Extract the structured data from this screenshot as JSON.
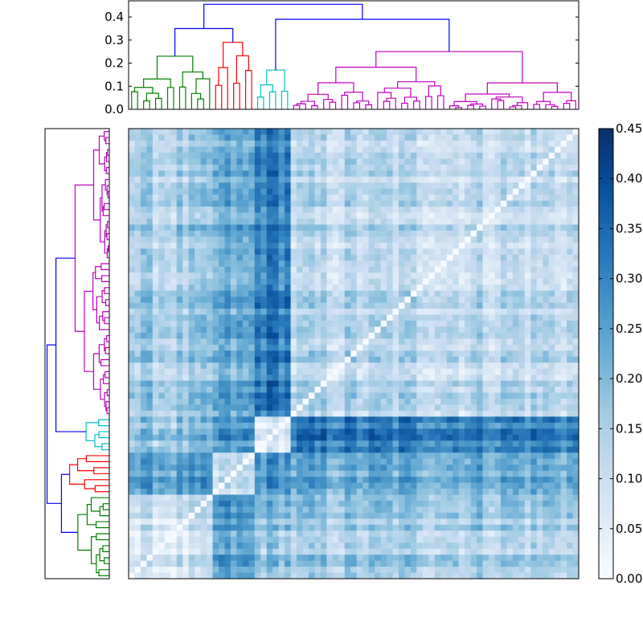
{
  "chart_data": {
    "type": "heatmap",
    "title": "",
    "xlabel": "",
    "ylabel": "",
    "n_leaves": 75,
    "clim": [
      0,
      0.45
    ],
    "colormap": "Blues",
    "top_dendrogram": {
      "ylim": [
        0,
        0.47
      ],
      "yticks": [
        "0.0",
        "0.1",
        "0.2",
        "0.3",
        "0.4"
      ],
      "cluster_colors": [
        "#008000",
        "#ff0000",
        "#00bfbf",
        "#bf00bf"
      ],
      "link_color": "#0000ff",
      "clusters": [
        {
          "name": "green",
          "leaves": 14,
          "height": 0.23
        },
        {
          "name": "red",
          "leaves": 7,
          "height": 0.29
        },
        {
          "name": "cyan",
          "leaves": 6,
          "height": 0.17
        },
        {
          "name": "magenta",
          "leaves": 48,
          "height": 0.25
        }
      ],
      "links": [
        {
          "height": 0.35,
          "joins": [
            "green",
            "red"
          ]
        },
        {
          "height": 0.39,
          "joins": [
            "cyan",
            "magenta"
          ]
        },
        {
          "height": 0.455,
          "joins": [
            "green+red",
            "cyan+magenta"
          ]
        }
      ]
    },
    "colorbar": {
      "ticks": [
        "0.00",
        "0.05",
        "0.10",
        "0.15",
        "0.20",
        "0.25",
        "0.30",
        "0.35",
        "0.40",
        "0.45"
      ]
    },
    "grid": false
  }
}
